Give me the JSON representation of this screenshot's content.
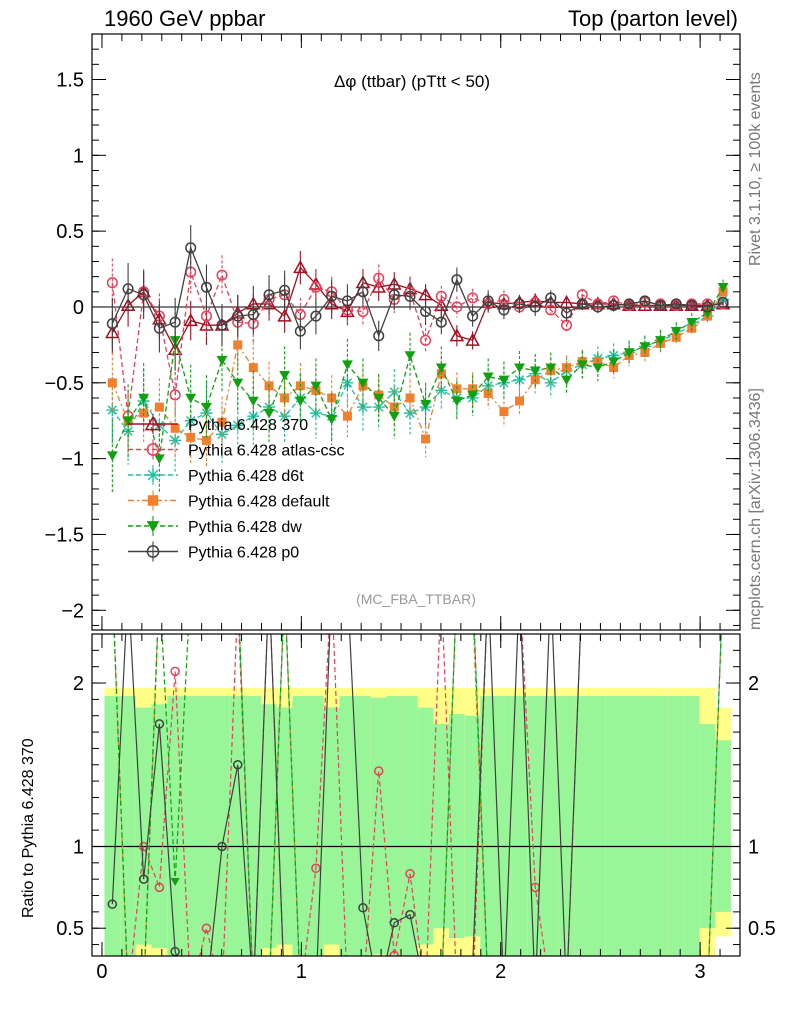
{
  "header": {
    "left": "1960 GeV ppbar",
    "right": "Top (parton level)"
  },
  "side_labels": {
    "rivet": "Rivet 3.1.10, ≥ 100k events",
    "mcplots": "mcplots.cern.ch [arXiv:1306.3436]"
  },
  "ratio_ylabel": "Ratio to Pythia 6.428 370",
  "chart_data": {
    "type": "scatter",
    "title": "Δφ (ttbar) (pTtt < 50)",
    "watermark": "(MC_FBA_TTBAR)",
    "xlabel": "",
    "ylabel": "",
    "xlim": [
      -0.05,
      3.2
    ],
    "ylim": [
      -2.13,
      1.8
    ],
    "xticks": [
      "0",
      "1",
      "2",
      "3"
    ],
    "yticks": [
      "−2",
      "−1.5",
      "−1",
      "−0.5",
      "0",
      "0.5",
      "1",
      "1.5"
    ],
    "ratio_ylim": [
      0.33,
      2.3
    ],
    "ratio_yticks": [
      "0.5",
      "1",
      "2"
    ],
    "legend_position": "center-left",
    "x": [
      0.052,
      0.131,
      0.209,
      0.288,
      0.367,
      0.445,
      0.524,
      0.602,
      0.681,
      0.759,
      0.838,
      0.916,
      0.995,
      1.073,
      1.152,
      1.231,
      1.309,
      1.388,
      1.466,
      1.545,
      1.623,
      1.702,
      1.78,
      1.859,
      1.937,
      2.016,
      2.094,
      2.173,
      2.251,
      2.33,
      2.409,
      2.487,
      2.566,
      2.644,
      2.723,
      2.801,
      2.88,
      2.958,
      3.037,
      3.115
    ],
    "series": [
      {
        "name": "Pythia 6.428 370",
        "color": "#a01020",
        "marker": "triangle-open",
        "line": "solid",
        "values": [
          -0.17,
          0.01,
          0.1,
          -0.08,
          -0.28,
          -0.09,
          -0.12,
          -0.12,
          -0.04,
          0.02,
          0.02,
          -0.06,
          0.26,
          0.15,
          0.02,
          -0.03,
          0.16,
          0.13,
          0.15,
          0.12,
          0.08,
          0.01,
          -0.19,
          -0.22,
          0.03,
          0.02,
          0.03,
          0.04,
          0.03,
          0.03,
          0.02,
          0.02,
          0.02,
          0.01,
          0.01,
          0.01,
          0.01,
          0.01,
          0.01,
          0.02
        ],
        "err": [
          0.14,
          0.14,
          0.13,
          0.13,
          0.14,
          0.13,
          0.13,
          0.12,
          0.12,
          0.12,
          0.11,
          0.11,
          0.11,
          0.1,
          0.1,
          0.09,
          0.09,
          0.09,
          0.08,
          0.08,
          0.07,
          0.07,
          0.07,
          0.06,
          0.06,
          0.05,
          0.05,
          0.05,
          0.04,
          0.04,
          0.04,
          0.03,
          0.03,
          0.03,
          0.03,
          0.02,
          0.02,
          0.02,
          0.02,
          0.02
        ]
      },
      {
        "name": "Pythia 6.428 atlas-csc",
        "color": "#e8405a",
        "marker": "circle-open",
        "line": "dashed",
        "values": [
          0.16,
          -0.72,
          0.1,
          -0.06,
          -0.58,
          0.23,
          -0.06,
          0.21,
          -0.1,
          -0.11,
          0.05,
          0.08,
          -0.05,
          0.13,
          0.1,
          -0.02,
          -0.03,
          0.19,
          0.05,
          0.1,
          -0.22,
          0.07,
          0.0,
          0.06,
          0.02,
          0.05,
          0.0,
          0.03,
          -0.02,
          -0.12,
          0.08,
          0.02,
          0.04,
          0.01,
          0.03,
          0.02,
          0.01,
          0.02,
          0.02,
          0.02
        ],
        "err": [
          0.16,
          0.16,
          0.15,
          0.15,
          0.15,
          0.14,
          0.14,
          0.13,
          0.13,
          0.13,
          0.12,
          0.12,
          0.11,
          0.11,
          0.1,
          0.1,
          0.1,
          0.09,
          0.09,
          0.08,
          0.08,
          0.07,
          0.07,
          0.06,
          0.06,
          0.06,
          0.05,
          0.05,
          0.05,
          0.04,
          0.04,
          0.03,
          0.03,
          0.03,
          0.03,
          0.02,
          0.02,
          0.02,
          0.02,
          0.02
        ]
      },
      {
        "name": "Pythia 6.428 d6t",
        "color": "#20c0a0",
        "marker": "star",
        "line": "dashed",
        "values": [
          -0.68,
          -0.82,
          -0.62,
          -0.78,
          -0.88,
          -0.75,
          -0.7,
          -0.84,
          -0.78,
          -0.72,
          -0.66,
          -0.72,
          -0.6,
          -0.7,
          -0.72,
          -0.5,
          -0.66,
          -0.66,
          -0.56,
          -0.7,
          -0.66,
          -0.55,
          -0.6,
          -0.6,
          -0.52,
          -0.5,
          -0.48,
          -0.44,
          -0.5,
          -0.42,
          -0.38,
          -0.34,
          -0.32,
          -0.3,
          -0.26,
          -0.22,
          -0.18,
          -0.12,
          -0.06,
          0.05
        ],
        "err": [
          0.22,
          0.22,
          0.21,
          0.21,
          0.21,
          0.2,
          0.2,
          0.19,
          0.19,
          0.19,
          0.18,
          0.18,
          0.17,
          0.17,
          0.16,
          0.16,
          0.16,
          0.15,
          0.15,
          0.14,
          0.14,
          0.13,
          0.13,
          0.12,
          0.12,
          0.11,
          0.11,
          0.1,
          0.1,
          0.09,
          0.09,
          0.08,
          0.08,
          0.07,
          0.07,
          0.06,
          0.06,
          0.05,
          0.05,
          0.04
        ]
      },
      {
        "name": "Pythia 6.428 default",
        "color": "#f08030",
        "marker": "square",
        "line": "dashdot",
        "values": [
          -0.5,
          -0.75,
          -0.7,
          -0.66,
          -0.8,
          -0.86,
          -0.88,
          -0.76,
          -0.25,
          -0.4,
          -0.52,
          -0.6,
          -0.52,
          -0.55,
          -0.6,
          -0.72,
          -0.52,
          -0.58,
          -0.66,
          -0.6,
          -0.87,
          -0.44,
          -0.54,
          -0.54,
          -0.57,
          -0.69,
          -0.62,
          -0.48,
          -0.42,
          -0.4,
          -0.36,
          -0.36,
          -0.4,
          -0.32,
          -0.3,
          -0.24,
          -0.2,
          -0.14,
          -0.06,
          0.1
        ],
        "err": [
          0.2,
          0.2,
          0.19,
          0.19,
          0.19,
          0.18,
          0.18,
          0.17,
          0.17,
          0.17,
          0.16,
          0.16,
          0.15,
          0.15,
          0.15,
          0.14,
          0.14,
          0.13,
          0.13,
          0.12,
          0.12,
          0.12,
          0.11,
          0.11,
          0.1,
          0.1,
          0.1,
          0.09,
          0.09,
          0.08,
          0.08,
          0.07,
          0.07,
          0.07,
          0.06,
          0.06,
          0.05,
          0.05,
          0.05,
          0.04
        ]
      },
      {
        "name": "Pythia 6.428 dw",
        "color": "#10a010",
        "marker": "triangle-down",
        "line": "dashed",
        "values": [
          -0.98,
          -0.75,
          -0.6,
          -1.0,
          -0.22,
          -0.6,
          -0.66,
          -0.35,
          -0.5,
          -0.62,
          -0.7,
          -0.45,
          -0.62,
          -0.52,
          -0.74,
          -0.38,
          -0.5,
          -0.6,
          -0.72,
          -0.32,
          -0.64,
          -0.4,
          -0.62,
          -0.58,
          -0.46,
          -0.48,
          -0.4,
          -0.42,
          -0.4,
          -0.48,
          -0.38,
          -0.4,
          -0.36,
          -0.3,
          -0.26,
          -0.22,
          -0.16,
          -0.1,
          -0.04,
          0.13
        ],
        "err": [
          0.24,
          0.24,
          0.23,
          0.23,
          0.22,
          0.22,
          0.21,
          0.21,
          0.2,
          0.2,
          0.19,
          0.19,
          0.18,
          0.18,
          0.17,
          0.17,
          0.16,
          0.16,
          0.15,
          0.15,
          0.14,
          0.14,
          0.13,
          0.13,
          0.12,
          0.12,
          0.11,
          0.11,
          0.1,
          0.1,
          0.09,
          0.09,
          0.08,
          0.08,
          0.07,
          0.07,
          0.06,
          0.06,
          0.05,
          0.05
        ]
      },
      {
        "name": "Pythia 6.428 p0",
        "color": "#404040",
        "marker": "circle-open",
        "line": "solid",
        "values": [
          -0.11,
          0.12,
          0.08,
          -0.14,
          -0.1,
          0.39,
          0.13,
          -0.12,
          -0.06,
          -0.05,
          0.08,
          0.11,
          -0.16,
          -0.06,
          0.07,
          0.04,
          0.1,
          -0.19,
          0.08,
          0.07,
          -0.03,
          -0.1,
          0.18,
          -0.06,
          0.04,
          -0.02,
          0.02,
          0.0,
          0.06,
          -0.04,
          0.02,
          0.0,
          0.01,
          0.02,
          0.04,
          0.01,
          0.02,
          0.01,
          0.0,
          0.03
        ],
        "err": [
          0.17,
          0.17,
          0.16,
          0.16,
          0.16,
          0.15,
          0.15,
          0.14,
          0.14,
          0.13,
          0.13,
          0.13,
          0.12,
          0.12,
          0.11,
          0.11,
          0.1,
          0.1,
          0.1,
          0.09,
          0.09,
          0.08,
          0.08,
          0.07,
          0.07,
          0.06,
          0.06,
          0.06,
          0.05,
          0.05,
          0.04,
          0.04,
          0.04,
          0.03,
          0.03,
          0.03,
          0.02,
          0.02,
          0.02,
          0.02
        ]
      }
    ],
    "ratio_band": {
      "inner": [
        0.33,
        0.33,
        0.4,
        0.38,
        0.33,
        0.33,
        0.33,
        0.33,
        0.33,
        0.33,
        0.38,
        0.4,
        0.33,
        0.33,
        0.4,
        0.33,
        0.33,
        0.34,
        0.33,
        0.33,
        0.4,
        0.5,
        0.44,
        0.45,
        0.33,
        0.33,
        0.33,
        0.33,
        0.33,
        0.33,
        0.33,
        0.33,
        0.33,
        0.33,
        0.33,
        0.33,
        0.33,
        0.33,
        0.5,
        0.6
      ],
      "outer": [
        0.33,
        0.33,
        0.33,
        0.33,
        0.33,
        0.33,
        0.33,
        0.33,
        0.33,
        0.33,
        0.33,
        0.33,
        0.33,
        0.33,
        0.33,
        0.33,
        0.33,
        0.33,
        0.33,
        0.33,
        0.33,
        0.33,
        0.33,
        0.33,
        0.33,
        0.33,
        0.33,
        0.33,
        0.33,
        0.33,
        0.33,
        0.33,
        0.33,
        0.33,
        0.33,
        0.33,
        0.33,
        0.33,
        0.33,
        0.45
      ]
    }
  }
}
